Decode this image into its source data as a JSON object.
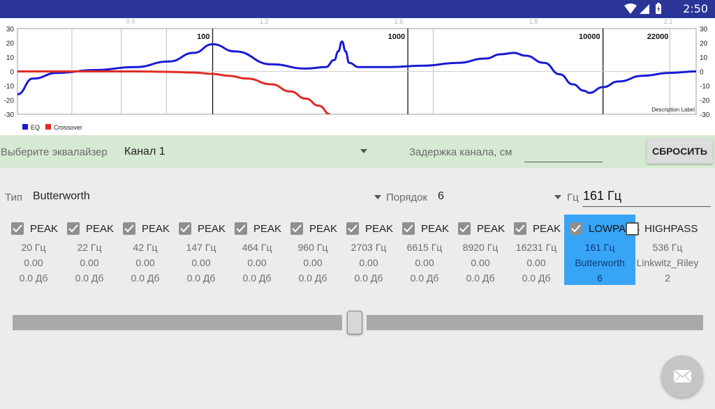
{
  "status_bar": {
    "time": "2:50",
    "icons": [
      "wifi-icon",
      "signal-icon",
      "battery-icon"
    ]
  },
  "chart_data": {
    "type": "line",
    "x_scale": "log",
    "xlim": [
      10,
      30000
    ],
    "ylim": [
      -30,
      30
    ],
    "y_ticks": [
      "30",
      "20",
      "10",
      "0",
      "-10",
      "-20",
      "-30"
    ],
    "x_labels": [
      "100",
      "1000",
      "10000",
      "22000"
    ],
    "x_top_ticks": [
      "0.9",
      "1.2",
      "1.5",
      "1.8",
      "2.1"
    ],
    "annotation": "Description Label",
    "legend_position": "bottom-left",
    "colors": {
      "eq": "#1a1ad4",
      "crossover": "#e02b24"
    },
    "series": [
      {
        "name": "EQ",
        "points": [
          [
            10,
            -16
          ],
          [
            12,
            -5
          ],
          [
            16,
            -1
          ],
          [
            25,
            1
          ],
          [
            40,
            3
          ],
          [
            60,
            7
          ],
          [
            80,
            13
          ],
          [
            100,
            19
          ],
          [
            130,
            14
          ],
          [
            200,
            5
          ],
          [
            300,
            2
          ],
          [
            380,
            3
          ],
          [
            420,
            8
          ],
          [
            440,
            14
          ],
          [
            460,
            21
          ],
          [
            480,
            14
          ],
          [
            500,
            6
          ],
          [
            560,
            3
          ],
          [
            800,
            3
          ],
          [
            1200,
            4
          ],
          [
            1800,
            6
          ],
          [
            2500,
            9
          ],
          [
            3000,
            12
          ],
          [
            3500,
            13
          ],
          [
            4000,
            11
          ],
          [
            5000,
            6
          ],
          [
            6000,
            -2
          ],
          [
            7000,
            -9
          ],
          [
            8000,
            -13.5
          ],
          [
            8500,
            -15
          ],
          [
            10000,
            -11
          ],
          [
            12000,
            -7
          ],
          [
            16000,
            -3
          ],
          [
            22000,
            -1
          ],
          [
            30000,
            0
          ]
        ]
      },
      {
        "name": "Crossover",
        "points": [
          [
            10,
            0
          ],
          [
            20,
            0
          ],
          [
            40,
            0
          ],
          [
            60,
            -0.3
          ],
          [
            80,
            -0.8
          ],
          [
            100,
            -1.7
          ],
          [
            120,
            -3
          ],
          [
            150,
            -5
          ],
          [
            200,
            -9
          ],
          [
            250,
            -14
          ],
          [
            300,
            -19
          ],
          [
            350,
            -24
          ],
          [
            400,
            -30
          ]
        ]
      }
    ]
  },
  "controls": {
    "eq_select_label": "Выберите эквалайзер",
    "eq_select_value": "Канал 1",
    "delay_label": "Задержка канала, см",
    "delay_value": "",
    "reset_label": "СБРОСИТЬ",
    "type_label": "Тип",
    "type_value": "Butterworth",
    "order_label": "Порядок",
    "order_value": "6",
    "freq_label": "Гц",
    "freq_value": "161 Гц"
  },
  "bands": [
    {
      "type": "PEAK",
      "checked": true,
      "freq": "20 Гц",
      "q": "0.00",
      "gain": "0.0 Дб"
    },
    {
      "type": "PEAK",
      "checked": true,
      "freq": "22 Гц",
      "q": "0.00",
      "gain": "0.0 Дб"
    },
    {
      "type": "PEAK",
      "checked": true,
      "freq": "42 Гц",
      "q": "0.00",
      "gain": "0.0 Дб"
    },
    {
      "type": "PEAK",
      "checked": true,
      "freq": "147 Гц",
      "q": "0.00",
      "gain": "0.0 Дб"
    },
    {
      "type": "PEAK",
      "checked": true,
      "freq": "464 Гц",
      "q": "0.00",
      "gain": "0.0 Дб"
    },
    {
      "type": "PEAK",
      "checked": true,
      "freq": "960 Гц",
      "q": "0.00",
      "gain": "0.0 Дб"
    },
    {
      "type": "PEAK",
      "checked": true,
      "freq": "2703 Гц",
      "q": "0.00",
      "gain": "0.0 Дб"
    },
    {
      "type": "PEAK",
      "checked": true,
      "freq": "6615 Гц",
      "q": "0.00",
      "gain": "0.0 Дб"
    },
    {
      "type": "PEAK",
      "checked": true,
      "freq": "8920 Гц",
      "q": "0.00",
      "gain": "0.0 Дб"
    },
    {
      "type": "PEAK",
      "checked": true,
      "freq": "16231 Гц",
      "q": "0.00",
      "gain": "0.0 Дб"
    },
    {
      "type": "LOWPASS",
      "checked": true,
      "selected": true,
      "freq": "161 Гц",
      "q": "Butterworth",
      "gain": "6"
    },
    {
      "type": "HIGHPASS",
      "checked": false,
      "freq": "536 Гц",
      "q": "Linkwitz_Riley",
      "gain": "2"
    }
  ],
  "slider_value": 0.5,
  "fab_icon": "mail-icon"
}
